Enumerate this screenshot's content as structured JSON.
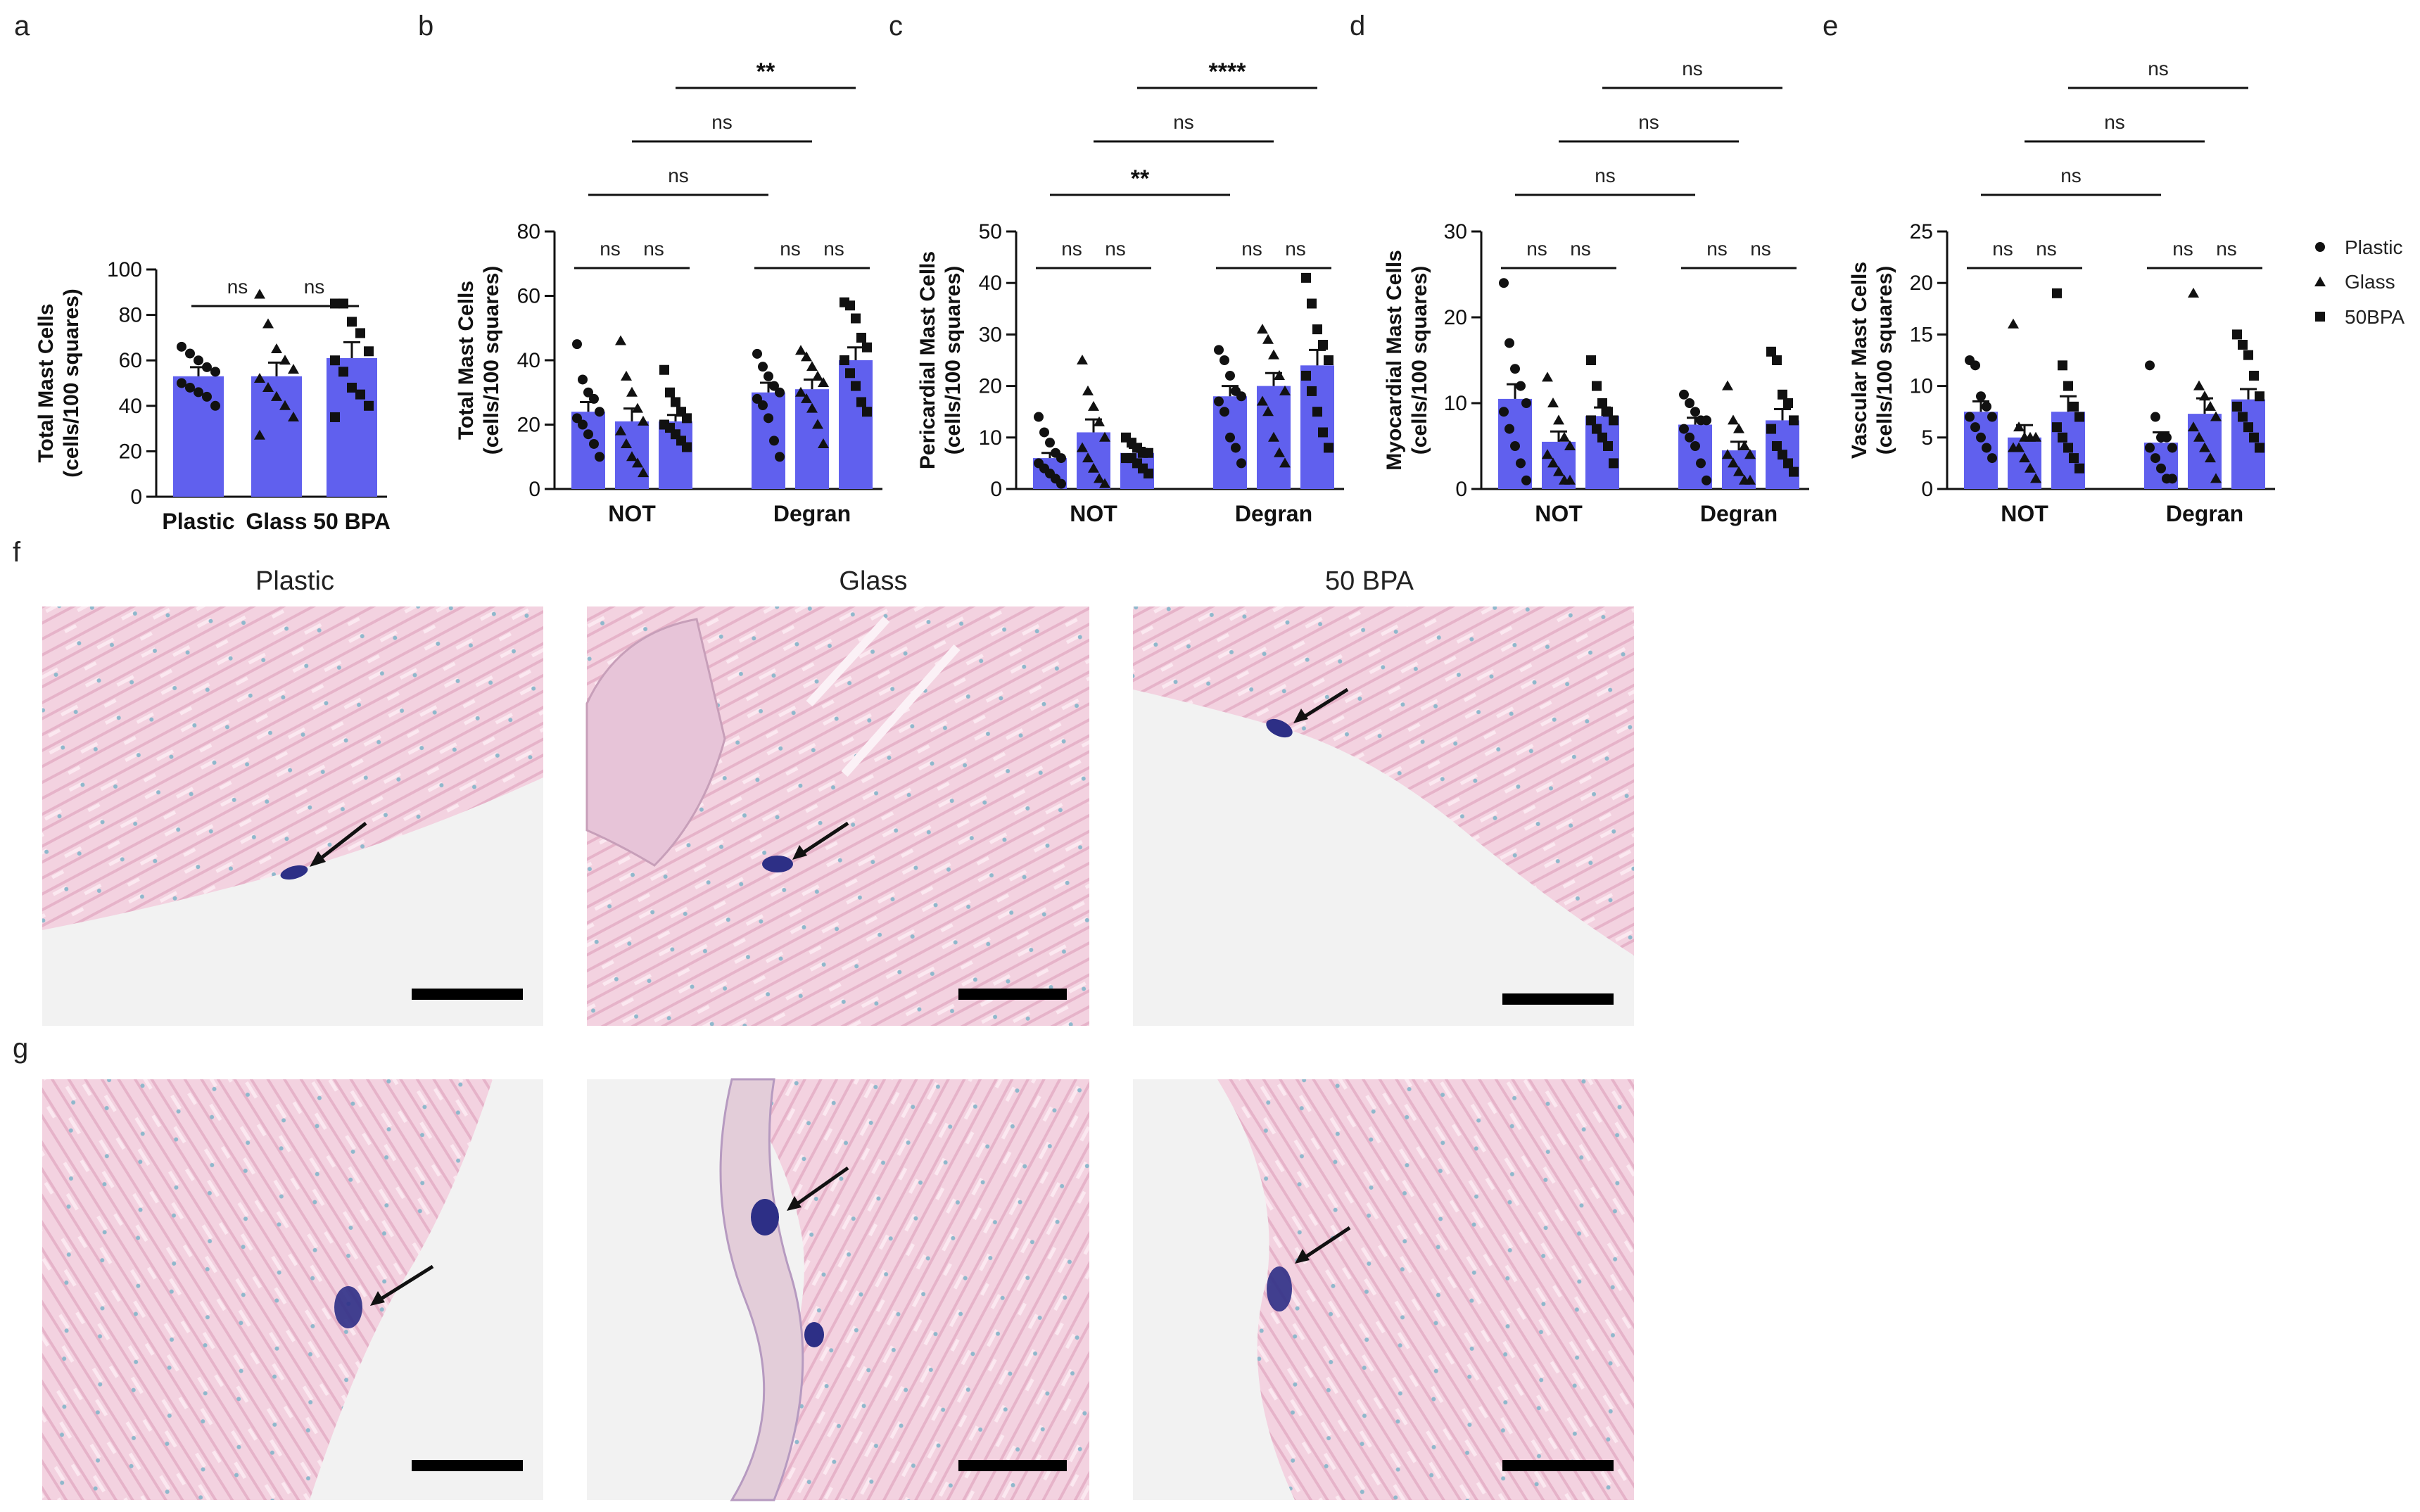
{
  "colors": {
    "bar": "#6060ee",
    "axis": "#111111",
    "marker": "#111111",
    "tissue": "#f0c8da",
    "background": "#f2f2f2",
    "stain": "#2d2f86"
  },
  "legend": [
    {
      "label": "Plastic",
      "marker": "circle"
    },
    {
      "label": "Glass",
      "marker": "triangle"
    },
    {
      "label": "50BPA",
      "marker": "square"
    }
  ],
  "chart_data": [
    {
      "letter": "a",
      "type": "bar",
      "ylabel_lines": [
        "Total Mast Cells",
        "(cells/100 squares)"
      ],
      "ylim": [
        0,
        100
      ],
      "yticks": [
        0,
        20,
        40,
        60,
        80,
        100
      ],
      "categories": [
        "Plastic",
        "Glass",
        "50 BPA"
      ],
      "groups": [],
      "bars": [
        {
          "group": 0,
          "value": 53,
          "err": 4,
          "marker": "circle",
          "points": [
            66,
            63,
            60,
            57,
            55,
            50,
            48,
            46,
            44,
            40
          ]
        },
        {
          "group": 0,
          "value": 53,
          "err": 6,
          "marker": "triangle",
          "points": [
            89,
            76,
            65,
            60,
            56,
            52,
            48,
            44,
            40,
            35,
            27
          ]
        },
        {
          "group": 0,
          "value": 61,
          "err": 7,
          "marker": "square",
          "points": [
            85,
            85,
            77,
            72,
            64,
            60,
            55,
            48,
            45,
            40,
            35
          ]
        }
      ],
      "comparisons": [
        {
          "from": 0,
          "to": 1,
          "label": "ns",
          "level": 0
        },
        {
          "from": 1,
          "to": 2,
          "label": "ns",
          "level": 0
        }
      ]
    },
    {
      "letter": "b",
      "type": "bar",
      "ylabel_lines": [
        "Total Mast Cells",
        "(cells/100 squares)"
      ],
      "ylim": [
        0,
        80
      ],
      "yticks": [
        0,
        20,
        40,
        60,
        80
      ],
      "categories": [],
      "groups": [
        "NOT",
        "Degran"
      ],
      "bars": [
        {
          "group": 0,
          "value": 24,
          "err": 3,
          "marker": "circle",
          "points": [
            45,
            34,
            30,
            28,
            24,
            22,
            20,
            17,
            14,
            10
          ]
        },
        {
          "group": 0,
          "value": 21,
          "err": 4,
          "marker": "triangle",
          "points": [
            46,
            35,
            30,
            25,
            21,
            18,
            14,
            10,
            8,
            5
          ]
        },
        {
          "group": 0,
          "value": 21,
          "err": 2,
          "marker": "square",
          "points": [
            37,
            30,
            27,
            24,
            22,
            20,
            19,
            17,
            15,
            13
          ]
        },
        {
          "group": 1,
          "value": 30,
          "err": 3,
          "marker": "circle",
          "points": [
            42,
            38,
            35,
            32,
            30,
            28,
            26,
            22,
            15,
            10
          ]
        },
        {
          "group": 1,
          "value": 31,
          "err": 3,
          "marker": "triangle",
          "points": [
            43,
            41,
            38,
            35,
            33,
            30,
            28,
            25,
            20,
            14
          ]
        },
        {
          "group": 1,
          "value": 40,
          "err": 4,
          "marker": "square",
          "points": [
            58,
            57,
            53,
            47,
            44,
            40,
            36,
            32,
            27,
            24
          ]
        }
      ],
      "comparisons": [
        {
          "from": 0,
          "to": 1,
          "label": "ns",
          "level": 0
        },
        {
          "from": 1,
          "to": 2,
          "label": "ns",
          "level": 0
        },
        {
          "from": 3,
          "to": 4,
          "label": "ns",
          "level": 0
        },
        {
          "from": 4,
          "to": 5,
          "label": "ns",
          "level": 0
        },
        {
          "from": 0,
          "to": 3,
          "label": "ns",
          "level": 1
        },
        {
          "from": 1,
          "to": 4,
          "label": "ns",
          "level": 2
        },
        {
          "from": 2,
          "to": 5,
          "label": "**",
          "level": 3
        }
      ]
    },
    {
      "letter": "c",
      "type": "bar",
      "ylabel_lines": [
        "Pericardial Mast Cells",
        "(cells/100 squares)"
      ],
      "ylim": [
        0,
        50
      ],
      "yticks": [
        0,
        10,
        20,
        30,
        40,
        50
      ],
      "categories": [],
      "groups": [
        "NOT",
        "Degran"
      ],
      "bars": [
        {
          "group": 0,
          "value": 6,
          "err": 1,
          "marker": "circle",
          "points": [
            14,
            11,
            9,
            7,
            6,
            5,
            4,
            3,
            2,
            1
          ]
        },
        {
          "group": 0,
          "value": 11,
          "err": 2.5,
          "marker": "triangle",
          "points": [
            25,
            19,
            16,
            13,
            10,
            8,
            6,
            4,
            2,
            1
          ]
        },
        {
          "group": 0,
          "value": 7,
          "err": 1,
          "marker": "square",
          "points": [
            10,
            9,
            8,
            7,
            7,
            6,
            6,
            5,
            4,
            3
          ]
        },
        {
          "group": 1,
          "value": 18,
          "err": 2,
          "marker": "circle",
          "points": [
            27,
            25,
            22,
            19,
            18,
            17,
            15,
            10,
            8,
            5
          ]
        },
        {
          "group": 1,
          "value": 20,
          "err": 2.5,
          "marker": "triangle",
          "points": [
            31,
            29,
            26,
            22,
            19,
            17,
            15,
            10,
            7,
            5
          ]
        },
        {
          "group": 1,
          "value": 24,
          "err": 3,
          "marker": "square",
          "points": [
            41,
            36,
            31,
            28,
            25,
            22,
            19,
            15,
            11,
            8
          ]
        }
      ],
      "comparisons": [
        {
          "from": 0,
          "to": 1,
          "label": "ns",
          "level": 0
        },
        {
          "from": 1,
          "to": 2,
          "label": "ns",
          "level": 0
        },
        {
          "from": 3,
          "to": 4,
          "label": "ns",
          "level": 0
        },
        {
          "from": 4,
          "to": 5,
          "label": "ns",
          "level": 0
        },
        {
          "from": 0,
          "to": 3,
          "label": "**",
          "level": 1
        },
        {
          "from": 1,
          "to": 4,
          "label": "ns",
          "level": 2
        },
        {
          "from": 2,
          "to": 5,
          "label": "****",
          "level": 3
        }
      ]
    },
    {
      "letter": "d",
      "type": "bar",
      "ylabel_lines": [
        "Myocardial Mast Cells",
        "(cells/100 squares)"
      ],
      "ylim": [
        0,
        30
      ],
      "yticks": [
        0,
        10,
        20,
        30
      ],
      "categories": [],
      "groups": [
        "NOT",
        "Degran"
      ],
      "bars": [
        {
          "group": 0,
          "value": 10.5,
          "err": 1.7,
          "marker": "circle",
          "points": [
            24,
            17,
            14,
            12,
            10,
            9,
            7,
            5,
            3,
            1
          ]
        },
        {
          "group": 0,
          "value": 5.5,
          "err": 1.2,
          "marker": "triangle",
          "points": [
            13,
            10,
            8,
            6,
            5,
            4,
            3,
            2,
            1,
            1
          ]
        },
        {
          "group": 0,
          "value": 8.5,
          "err": 1,
          "marker": "square",
          "points": [
            15,
            12,
            10,
            9,
            8,
            8,
            7,
            6,
            5,
            3
          ]
        },
        {
          "group": 1,
          "value": 7.5,
          "err": 0.8,
          "marker": "circle",
          "points": [
            11,
            10,
            9,
            8,
            8,
            7,
            6,
            5,
            3,
            1
          ]
        },
        {
          "group": 1,
          "value": 4.5,
          "err": 1,
          "marker": "triangle",
          "points": [
            12,
            8,
            7,
            5,
            4,
            4,
            3,
            2,
            1,
            1
          ]
        },
        {
          "group": 1,
          "value": 8,
          "err": 1.3,
          "marker": "square",
          "points": [
            16,
            15,
            11,
            10,
            8,
            7,
            5,
            4,
            3,
            2
          ]
        }
      ],
      "comparisons": [
        {
          "from": 0,
          "to": 1,
          "label": "ns",
          "level": 0
        },
        {
          "from": 1,
          "to": 2,
          "label": "ns",
          "level": 0
        },
        {
          "from": 3,
          "to": 4,
          "label": "ns",
          "level": 0
        },
        {
          "from": 4,
          "to": 5,
          "label": "ns",
          "level": 0
        },
        {
          "from": 0,
          "to": 3,
          "label": "ns",
          "level": 1
        },
        {
          "from": 1,
          "to": 4,
          "label": "ns",
          "level": 2
        },
        {
          "from": 2,
          "to": 5,
          "label": "ns",
          "level": 3
        }
      ]
    },
    {
      "letter": "e",
      "type": "bar",
      "ylabel_lines": [
        "Vascular Mast Cells",
        "(cells/100 squares)"
      ],
      "ylim": [
        0,
        25
      ],
      "yticks": [
        0,
        5,
        10,
        15,
        20,
        25
      ],
      "categories": [],
      "groups": [
        "NOT",
        "Degran"
      ],
      "bars": [
        {
          "group": 0,
          "value": 7.5,
          "err": 1,
          "marker": "circle",
          "points": [
            12.5,
            12,
            9,
            8,
            7,
            7,
            6,
            5,
            4,
            3
          ]
        },
        {
          "group": 0,
          "value": 5,
          "err": 1.2,
          "marker": "triangle",
          "points": [
            16,
            6,
            5,
            5,
            5,
            4,
            4,
            3,
            2,
            1
          ]
        },
        {
          "group": 0,
          "value": 7.5,
          "err": 1.5,
          "marker": "square",
          "points": [
            19,
            12,
            10,
            8,
            7,
            6,
            5,
            4,
            3,
            2
          ]
        },
        {
          "group": 1,
          "value": 4.5,
          "err": 1,
          "marker": "circle",
          "points": [
            12,
            7,
            5,
            5,
            4,
            4,
            3,
            2,
            1,
            1
          ]
        },
        {
          "group": 1,
          "value": 7.3,
          "err": 1.5,
          "marker": "triangle",
          "points": [
            19,
            10,
            9,
            8,
            7,
            6,
            5,
            4,
            3,
            1
          ]
        },
        {
          "group": 1,
          "value": 8.7,
          "err": 1,
          "marker": "square",
          "points": [
            15,
            14,
            13,
            11,
            9,
            8,
            7,
            6,
            5,
            4
          ]
        }
      ],
      "comparisons": [
        {
          "from": 0,
          "to": 1,
          "label": "ns",
          "level": 0
        },
        {
          "from": 1,
          "to": 2,
          "label": "ns",
          "level": 0
        },
        {
          "from": 3,
          "to": 4,
          "label": "ns",
          "level": 0
        },
        {
          "from": 4,
          "to": 5,
          "label": "ns",
          "level": 0
        },
        {
          "from": 0,
          "to": 3,
          "label": "ns",
          "level": 1
        },
        {
          "from": 1,
          "to": 4,
          "label": "ns",
          "level": 2
        },
        {
          "from": 2,
          "to": 5,
          "label": "ns",
          "level": 3
        }
      ]
    }
  ],
  "micrographs": {
    "row_f_letter": "f",
    "row_g_letter": "g",
    "column_titles": [
      "Plastic",
      "Glass",
      "50 BPA"
    ]
  }
}
